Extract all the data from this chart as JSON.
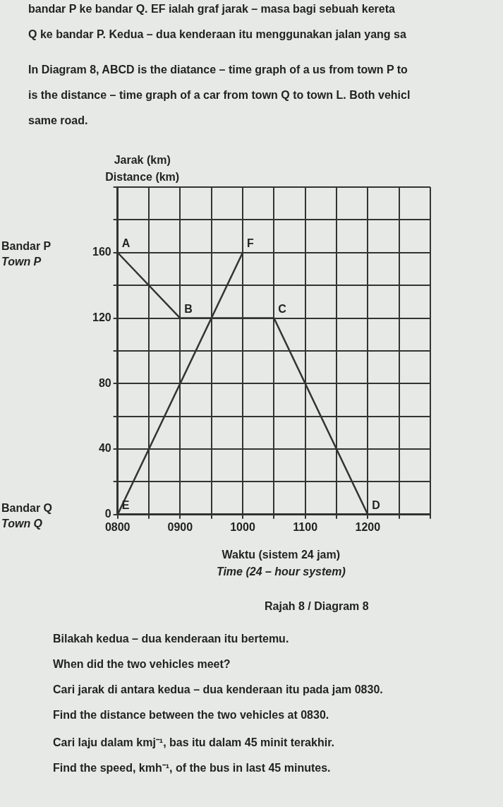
{
  "chart_data": {
    "type": "line",
    "xlabel": "Waktu (sistem 24 jam)\nTime (24 – hour system)",
    "ylabel": "Jarak (km)\nDistance (km)",
    "categories": [
      "0800",
      null,
      "0900",
      null,
      "1000",
      null,
      "1100",
      null,
      "1200",
      null,
      null
    ],
    "ylim": [
      0,
      200
    ],
    "yticks": [
      0,
      {
        "value": 20,
        "label": null
      },
      40,
      {
        "value": 60,
        "label": null
      },
      80,
      {
        "value": 100,
        "label": null
      },
      120,
      {
        "value": 140,
        "label": null
      },
      160,
      {
        "value": 180,
        "label": null
      },
      {
        "value": 200,
        "label": null
      }
    ],
    "grid": true,
    "legend": false,
    "marker": "none",
    "line_style": "solid",
    "series": [
      {
        "color": "#333333",
        "values": [
          160,
          null,
          120,
          null,
          null,
          120,
          null,
          null,
          0,
          null,
          null
        ],
        "value_labels": [
          "A",
          null,
          "B",
          null,
          null,
          "C",
          null,
          null,
          "D",
          null,
          null
        ]
      },
      {
        "color": "#333333",
        "values": [
          0,
          null,
          null,
          null,
          160,
          null,
          null,
          null,
          null,
          null,
          null
        ],
        "value_labels": [
          "E",
          null,
          null,
          null,
          "F",
          null,
          null,
          null,
          null,
          null,
          null
        ]
      }
    ],
    "annotations": [
      "bandar P ke bandar Q.  EF ialah graf jarak – masa bagi sebuah kereta",
      "Q ke bandar P. Kedua – dua kenderaan itu menggunakan jalan yang sa",
      "In Diagram 8, ABCD is the diatance – time graph of a us from town P to",
      "is the distance – time graph of a car from town Q to town L. Both vehicl",
      "same road.",
      "Bandar P\nTown P",
      "Bandar Q\nTown Q",
      "Rajah 8 / Diagram 8",
      "Bilakah kedua – dua kenderaan itu bertemu.",
      "When did the two vehicles meet?",
      "Cari jarak di antara kedua – dua kenderaan itu pada jam 0830.",
      "Find the distance between the two vehicles at 0830.",
      "Cari laju  dalam kmj⁻¹, bas itu dalam 45 minit terakhir.",
      "Find the speed, kmh⁻¹, of the bus in last 45 minutes."
    ]
  }
}
